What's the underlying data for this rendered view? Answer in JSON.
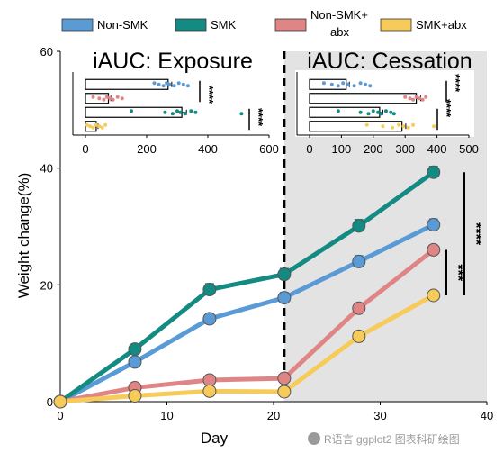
{
  "legend": [
    {
      "name": "Non-SMK",
      "color": "#5B9BD5"
    },
    {
      "name": "SMK",
      "color": "#138A82"
    },
    {
      "name": "Non-SMK+\nabx",
      "color": "#E08585"
    },
    {
      "name": "SMK+abx",
      "color": "#F7CB5A"
    }
  ],
  "chart_data": [
    {
      "type": "line",
      "xlabel": "Day",
      "ylabel": "Weight change(%)",
      "xlim": [
        0,
        40
      ],
      "ylim": [
        0,
        60
      ],
      "x_ticks": [
        0,
        10,
        20,
        30,
        40
      ],
      "y_ticks": [
        0,
        20,
        40,
        60
      ],
      "grid": false,
      "x": [
        0,
        7,
        14,
        21,
        28,
        35
      ],
      "vline": {
        "x": 21,
        "style": "dashed"
      },
      "shaded_region": {
        "x_from": 21,
        "x_to": 40,
        "color": "#E3E3E3"
      },
      "series": [
        {
          "name": "Non-SMK",
          "color": "#5B9BD5",
          "values": [
            0,
            6.8,
            14.2,
            17.8,
            24.0,
            30.3
          ],
          "errors": [
            0,
            0.8,
            0.6,
            0.9,
            1.0,
            1.0
          ]
        },
        {
          "name": "SMK",
          "color": "#138A82",
          "values": [
            0,
            9.0,
            19.2,
            21.8,
            30.1,
            39.3
          ],
          "errors": [
            0,
            0.6,
            1.0,
            1.0,
            1.1,
            1.0
          ]
        },
        {
          "name": "Non-SMK+abx",
          "color": "#E08585",
          "values": [
            0,
            2.4,
            3.7,
            4.0,
            16.0,
            26.0
          ],
          "errors": [
            0,
            0.4,
            0.5,
            0.5,
            0.8,
            0.8
          ]
        },
        {
          "name": "SMK+abx",
          "color": "#F7CB5A",
          "values": [
            0,
            1.0,
            1.8,
            1.7,
            11.2,
            18.2
          ],
          "errors": [
            0,
            0.3,
            0.4,
            0.4,
            0.6,
            0.7
          ]
        }
      ],
      "annotations": [
        {
          "text": "***",
          "between": [
            "Non-SMK+abx",
            "SMK+abx"
          ],
          "y_range": [
            18.2,
            26.0
          ]
        },
        {
          "text": "****",
          "between": [
            "SMK",
            "SMK+abx"
          ],
          "y_range": [
            18.2,
            39.3
          ]
        }
      ]
    },
    {
      "type": "bar",
      "title": "iAUC: Exposure",
      "orientation": "horizontal",
      "xlim": [
        0,
        600
      ],
      "x_ticks": [
        0,
        200,
        400,
        600
      ],
      "categories": [
        "Non-SMK",
        "Non-SMK+abx",
        "SMK",
        "SMK+abx"
      ],
      "values": [
        270,
        75,
        315,
        35
      ],
      "errors": [
        12,
        8,
        15,
        6
      ],
      "colors": [
        "#5B9BD5",
        "#E08585",
        "#138A82",
        "#F7CB5A"
      ],
      "points": [
        [
          225,
          240,
          255,
          265,
          275,
          290,
          305,
          320,
          335
        ],
        [
          25,
          45,
          60,
          70,
          80,
          90,
          105,
          120
        ],
        [
          150,
          260,
          285,
          300,
          310,
          325,
          345,
          360,
          510
        ],
        [
          5,
          15,
          25,
          35,
          45,
          55,
          65
        ]
      ],
      "annotations": [
        "****",
        "****"
      ]
    },
    {
      "type": "bar",
      "title": "iAUC: Cessation",
      "orientation": "horizontal",
      "xlim": [
        0,
        500
      ],
      "x_ticks": [
        0,
        100,
        200,
        300,
        400,
        500
      ],
      "categories": [
        "Non-SMK",
        "Non-SMK+abx",
        "SMK",
        "SMK+abx"
      ],
      "values": [
        115,
        335,
        220,
        290
      ],
      "errors": [
        10,
        14,
        10,
        12
      ],
      "colors": [
        "#5B9BD5",
        "#E08585",
        "#138A82",
        "#F7CB5A"
      ],
      "points": [
        [
          45,
          70,
          90,
          105,
          120,
          140,
          160,
          175,
          190
        ],
        [
          300,
          315,
          325,
          335,
          345,
          355,
          365
        ],
        [
          90,
          160,
          185,
          200,
          215,
          225,
          240,
          255,
          265
        ],
        [
          180,
          230,
          260,
          280,
          295,
          310,
          325,
          390
        ]
      ],
      "annotations": [
        "****",
        "****"
      ]
    }
  ],
  "watermark": "R语言 ggplot2 图表科研绘图"
}
